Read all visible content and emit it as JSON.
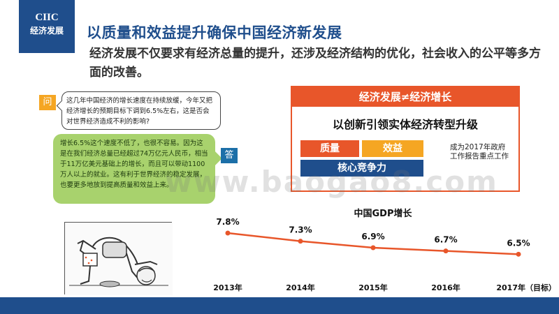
{
  "logo": {
    "line1": "CIIC",
    "line2": "经济发展"
  },
  "title": "以质量和效益提升确保中国经济新发展",
  "subtitle": "经济发展不仅要求有经济总量的提升，还涉及经济结构的优化，社会收入的公平等多方面的改善。",
  "qa": {
    "question_label": "问",
    "question": "这几年中国经济的增长速度在持续放缓，今年又把经济增长的预期目标下调到6.5%左右，这是否会对世界经济造成不利的影响?",
    "answer_label": "答",
    "answer": "增长6.5%这个速度不低了，也很不容易。因为这是在我们经济总量已经超过74万亿元人民币，相当于11万亿美元基础上的增长，而且可以带动1100万人以上的就业。这有利于世界经济的稳定发展，也要更多地放到提高质量和效益上来。"
  },
  "right_panel": {
    "header": "经济发展≠经济增长",
    "subheader": "以创新引领实体经济转型升级",
    "tags": [
      "质量",
      "效益",
      "核心竞争力"
    ],
    "note": "成为2017年政府工作报告重点工作",
    "colors": {
      "accent": "#e8562a",
      "gold": "#f5a623",
      "navy": "#1f4e8c"
    }
  },
  "chart_data": {
    "type": "line",
    "title": "中国GDP增长",
    "categories": [
      "2013年",
      "2014年",
      "2015年",
      "2016年",
      "2017年（目标）"
    ],
    "series": [
      {
        "values": [
          7.8,
          7.3,
          6.9,
          6.7,
          6.5
        ],
        "labels": [
          "7.8%",
          "7.3%",
          "6.9%",
          "6.7%",
          "6.5%"
        ],
        "color": "#e8562a"
      }
    ],
    "ylim": [
      6.0,
      8.4
    ]
  },
  "watermark": "www.baogao8.com"
}
